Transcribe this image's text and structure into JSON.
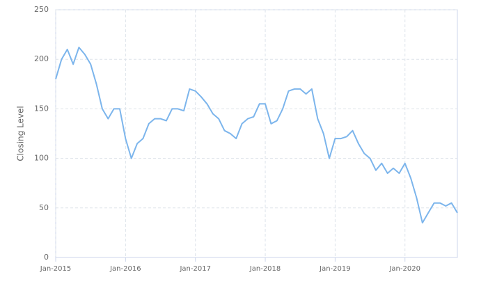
{
  "chart_data": {
    "type": "line",
    "y_label": "Closing Level",
    "x": [
      "2015-01",
      "2015-02",
      "2015-03",
      "2015-04",
      "2015-05",
      "2015-06",
      "2015-07",
      "2015-08",
      "2015-09",
      "2015-10",
      "2015-11",
      "2015-12",
      "2016-01",
      "2016-02",
      "2016-03",
      "2016-04",
      "2016-05",
      "2016-06",
      "2016-07",
      "2016-08",
      "2016-09",
      "2016-10",
      "2016-11",
      "2016-12",
      "2017-01",
      "2017-02",
      "2017-03",
      "2017-04",
      "2017-05",
      "2017-06",
      "2017-07",
      "2017-08",
      "2017-09",
      "2017-10",
      "2017-11",
      "2017-12",
      "2018-01",
      "2018-02",
      "2018-03",
      "2018-04",
      "2018-05",
      "2018-06",
      "2018-07",
      "2018-08",
      "2018-09",
      "2018-10",
      "2018-11",
      "2018-12",
      "2019-01",
      "2019-02",
      "2019-03",
      "2019-04",
      "2019-05",
      "2019-06",
      "2019-07",
      "2019-08",
      "2019-09",
      "2019-10",
      "2019-11",
      "2019-12",
      "2020-01",
      "2020-02",
      "2020-03",
      "2020-04",
      "2020-05",
      "2020-06",
      "2020-07",
      "2020-08",
      "2020-09",
      "2020-10"
    ],
    "series": [
      {
        "name": "Closing Level",
        "color": "#7cb5ec",
        "values": [
          180,
          200,
          210,
          195,
          212,
          205,
          195,
          175,
          150,
          140,
          150,
          150,
          120,
          100,
          115,
          120,
          135,
          140,
          140,
          138,
          150,
          150,
          148,
          170,
          168,
          162,
          155,
          145,
          140,
          128,
          125,
          120,
          135,
          140,
          142,
          155,
          155,
          135,
          138,
          150,
          168,
          170,
          170,
          165,
          170,
          140,
          125,
          100,
          120,
          120,
          122,
          128,
          115,
          105,
          100,
          88,
          95,
          85,
          90,
          85,
          95,
          80,
          60,
          35,
          45,
          55,
          55,
          52,
          55,
          45
        ]
      }
    ],
    "xlim": [
      "2015-01",
      "2020-10"
    ],
    "xticks": [
      {
        "value": "2015-01",
        "label": "Jan-2015"
      },
      {
        "value": "2016-01",
        "label": "Jan-2016"
      },
      {
        "value": "2017-01",
        "label": "Jan-2017"
      },
      {
        "value": "2018-01",
        "label": "Jan-2018"
      },
      {
        "value": "2019-01",
        "label": "Jan-2019"
      },
      {
        "value": "2020-01",
        "label": "Jan-2020"
      }
    ],
    "ylim": [
      0,
      250
    ],
    "yticks": [
      0,
      50,
      100,
      150,
      200,
      250
    ],
    "grid": true
  }
}
